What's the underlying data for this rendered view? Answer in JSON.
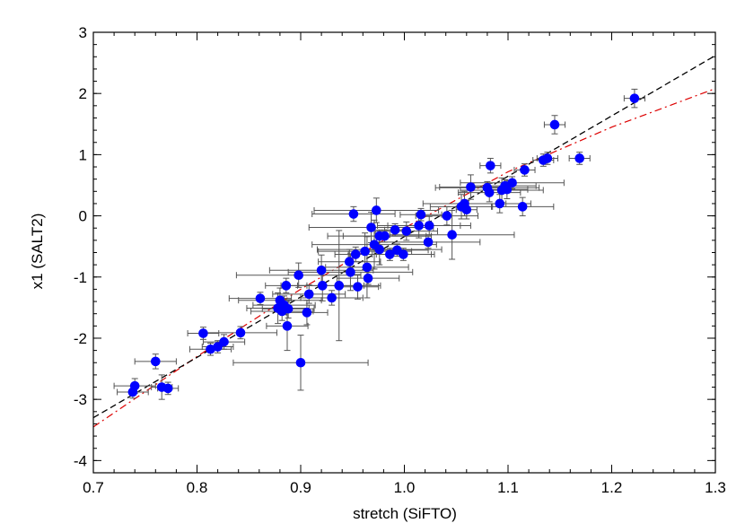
{
  "chart_data": {
    "type": "scatter",
    "title": "",
    "xlabel": "stretch (SiFTO)",
    "ylabel": "x1 (SALT2)",
    "xlim": [
      0.7,
      1.3
    ],
    "ylim": [
      -4.2,
      3.0
    ],
    "xticks": [
      "0.7",
      "0.8",
      "0.9",
      "1.0",
      "1.1",
      "1.2",
      "1.3"
    ],
    "yticks": [
      "-4",
      "-3",
      "-2",
      "-1",
      "0",
      "1",
      "2",
      "3"
    ],
    "xtick_values": [
      0.7,
      0.8,
      0.9,
      1.0,
      1.1,
      1.2,
      1.3
    ],
    "ytick_values": [
      -4,
      -3,
      -2,
      -1,
      0,
      1,
      2,
      3
    ],
    "grid": false,
    "legend": "none",
    "colors": {
      "points": "#0000ff",
      "errorbars": "#555555",
      "fit_dashed": "#000000",
      "fit_dashdot": "#dd0000"
    },
    "points": [
      {
        "x": 0.738,
        "y": -2.88,
        "xerr": 0.015,
        "yerr": 0.1
      },
      {
        "x": 0.74,
        "y": -2.78,
        "xerr": 0.02,
        "yerr": 0.12
      },
      {
        "x": 0.76,
        "y": -2.38,
        "xerr": 0.02,
        "yerr": 0.12
      },
      {
        "x": 0.766,
        "y": -2.8,
        "xerr": 0.01,
        "yerr": 0.2
      },
      {
        "x": 0.772,
        "y": -2.82,
        "xerr": 0.01,
        "yerr": 0.1
      },
      {
        "x": 0.806,
        "y": -1.92,
        "xerr": 0.015,
        "yerr": 0.1
      },
      {
        "x": 0.813,
        "y": -2.18,
        "xerr": 0.02,
        "yerr": 0.1
      },
      {
        "x": 0.82,
        "y": -2.14,
        "xerr": 0.015,
        "yerr": 0.1
      },
      {
        "x": 0.826,
        "y": -2.06,
        "xerr": 0.02,
        "yerr": 0.12
      },
      {
        "x": 0.842,
        "y": -1.91,
        "xerr": 0.035,
        "yerr": 0.1
      },
      {
        "x": 0.861,
        "y": -1.35,
        "xerr": 0.03,
        "yerr": 0.1
      },
      {
        "x": 0.878,
        "y": -1.51,
        "xerr": 0.03,
        "yerr": 0.25
      },
      {
        "x": 0.88,
        "y": -1.38,
        "xerr": 0.04,
        "yerr": 0.2
      },
      {
        "x": 0.882,
        "y": -1.56,
        "xerr": 0.03,
        "yerr": 0.15
      },
      {
        "x": 0.884,
        "y": -1.46,
        "xerr": 0.03,
        "yerr": 0.15
      },
      {
        "x": 0.886,
        "y": -1.14,
        "xerr": 0.02,
        "yerr": 0.12
      },
      {
        "x": 0.888,
        "y": -1.52,
        "xerr": 0.025,
        "yerr": 0.15
      },
      {
        "x": 0.887,
        "y": -1.8,
        "xerr": 0.02,
        "yerr": 0.4
      },
      {
        "x": 0.898,
        "y": -0.97,
        "xerr": 0.06,
        "yerr": 0.2
      },
      {
        "x": 0.9,
        "y": -2.4,
        "xerr": 0.065,
        "yerr": 0.45
      },
      {
        "x": 0.906,
        "y": -1.58,
        "xerr": 0.02,
        "yerr": 0.2
      },
      {
        "x": 0.908,
        "y": -1.28,
        "xerr": 0.035,
        "yerr": 0.15
      },
      {
        "x": 0.92,
        "y": -0.89,
        "xerr": 0.05,
        "yerr": 0.25
      },
      {
        "x": 0.921,
        "y": -1.14,
        "xerr": 0.04,
        "yerr": 0.25
      },
      {
        "x": 0.93,
        "y": -1.34,
        "xerr": 0.03,
        "yerr": 0.12
      },
      {
        "x": 0.937,
        "y": -1.14,
        "xerr": 0.04,
        "yerr": 0.9
      },
      {
        "x": 0.947,
        "y": -0.75,
        "xerr": 0.03,
        "yerr": 0.2
      },
      {
        "x": 0.948,
        "y": -0.92,
        "xerr": 0.06,
        "yerr": 0.3
      },
      {
        "x": 0.951,
        "y": 0.03,
        "xerr": 0.04,
        "yerr": 0.12
      },
      {
        "x": 0.953,
        "y": -0.63,
        "xerr": 0.02,
        "yerr": 0.12
      },
      {
        "x": 0.955,
        "y": -1.16,
        "xerr": 0.02,
        "yerr": 0.2
      },
      {
        "x": 0.962,
        "y": -0.58,
        "xerr": 0.045,
        "yerr": 0.3
      },
      {
        "x": 0.964,
        "y": -0.84,
        "xerr": 0.04,
        "yerr": 0.5
      },
      {
        "x": 0.965,
        "y": -1.02,
        "xerr": 0.03,
        "yerr": 0.1
      },
      {
        "x": 0.968,
        "y": -0.19,
        "xerr": 0.06,
        "yerr": 0.25
      },
      {
        "x": 0.971,
        "y": -0.47,
        "xerr": 0.06,
        "yerr": 0.4
      },
      {
        "x": 0.973,
        "y": 0.09,
        "xerr": 0.06,
        "yerr": 0.2
      },
      {
        "x": 0.976,
        "y": -0.33,
        "xerr": 0.05,
        "yerr": 0.1
      },
      {
        "x": 0.976,
        "y": -0.55,
        "xerr": 0.06,
        "yerr": 0.25
      },
      {
        "x": 0.981,
        "y": -0.33,
        "xerr": 0.04,
        "yerr": 0.1
      },
      {
        "x": 0.986,
        "y": -0.63,
        "xerr": 0.04,
        "yerr": 0.1
      },
      {
        "x": 0.991,
        "y": -0.23,
        "xerr": 0.01,
        "yerr": 0.1
      },
      {
        "x": 0.993,
        "y": -0.56,
        "xerr": 0.03,
        "yerr": 0.1
      },
      {
        "x": 0.999,
        "y": -0.63,
        "xerr": 0.03,
        "yerr": 0.1
      },
      {
        "x": 1.002,
        "y": -0.25,
        "xerr": 0.03,
        "yerr": 0.15
      },
      {
        "x": 1.014,
        "y": -0.16,
        "xerr": 0.04,
        "yerr": 0.2
      },
      {
        "x": 1.016,
        "y": 0.02,
        "xerr": 0.02,
        "yerr": 0.1
      },
      {
        "x": 1.023,
        "y": -0.43,
        "xerr": 0.05,
        "yerr": 0.1
      },
      {
        "x": 1.024,
        "y": -0.16,
        "xerr": 0.04,
        "yerr": 0.15
      },
      {
        "x": 1.041,
        "y": 0.0,
        "xerr": 0.03,
        "yerr": 0.15
      },
      {
        "x": 1.046,
        "y": -0.31,
        "xerr": 0.06,
        "yerr": 0.4
      },
      {
        "x": 1.055,
        "y": 0.15,
        "xerr": 0.03,
        "yerr": 0.2
      },
      {
        "x": 1.058,
        "y": 0.2,
        "xerr": 0.04,
        "yerr": 0.2
      },
      {
        "x": 1.06,
        "y": 0.1,
        "xerr": 0.01,
        "yerr": 0.15
      },
      {
        "x": 1.064,
        "y": 0.47,
        "xerr": 0.03,
        "yerr": 0.2
      },
      {
        "x": 1.08,
        "y": 0.46,
        "xerr": 0.05,
        "yerr": 0.1
      },
      {
        "x": 1.082,
        "y": 0.38,
        "xerr": 0.03,
        "yerr": 0.15
      },
      {
        "x": 1.083,
        "y": 0.82,
        "xerr": 0.01,
        "yerr": 0.12
      },
      {
        "x": 1.092,
        "y": 0.2,
        "xerr": 0.03,
        "yerr": 0.15
      },
      {
        "x": 1.094,
        "y": 0.42,
        "xerr": 0.04,
        "yerr": 0.2
      },
      {
        "x": 1.097,
        "y": 0.49,
        "xerr": 0.03,
        "yerr": 0.1
      },
      {
        "x": 1.099,
        "y": 0.43,
        "xerr": 0.02,
        "yerr": 0.15
      },
      {
        "x": 1.104,
        "y": 0.54,
        "xerr": 0.05,
        "yerr": 0.1
      },
      {
        "x": 1.114,
        "y": 0.15,
        "xerr": 0.03,
        "yerr": 0.15
      },
      {
        "x": 1.116,
        "y": 0.75,
        "xerr": 0.01,
        "yerr": 0.1
      },
      {
        "x": 1.134,
        "y": 0.91,
        "xerr": 0.01,
        "yerr": 0.1
      },
      {
        "x": 1.138,
        "y": 0.94,
        "xerr": 0.01,
        "yerr": 0.1
      },
      {
        "x": 1.145,
        "y": 1.49,
        "xerr": 0.01,
        "yerr": 0.15
      },
      {
        "x": 1.169,
        "y": 0.94,
        "xerr": 0.01,
        "yerr": 0.1
      },
      {
        "x": 1.222,
        "y": 1.92,
        "xerr": 0.01,
        "yerr": 0.15
      }
    ],
    "fit_dashed": {
      "x": [
        0.7,
        1.3
      ],
      "y": [
        -3.3,
        2.62
      ]
    },
    "fit_dashdot": {
      "x": [
        0.7,
        0.8,
        0.9,
        1.0,
        1.1,
        1.2,
        1.3
      ],
      "y": [
        -3.45,
        -2.3,
        -1.2,
        -0.2,
        0.72,
        1.45,
        2.08
      ]
    }
  }
}
